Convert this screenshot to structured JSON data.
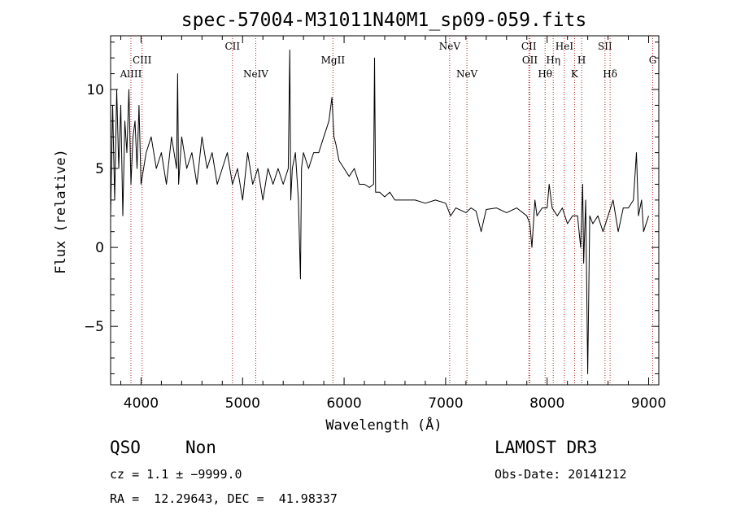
{
  "chart_data": {
    "type": "line",
    "title": "spec-57004-M31011N40M1_sp09-059.fits",
    "xlabel": "Wavelength (Å)",
    "ylabel": "Flux (relative)",
    "xlim": [
      3700,
      9100
    ],
    "ylim": [
      -8.7,
      13.4
    ],
    "x_ticks": [
      4000,
      5000,
      6000,
      7000,
      8000,
      9000
    ],
    "y_ticks": [
      -5,
      0,
      5,
      10
    ],
    "x_tick_labels": [
      "4000",
      "5000",
      "6000",
      "7000",
      "8000",
      "9000"
    ],
    "y_tick_labels": [
      "−5",
      "0",
      "5",
      "10"
    ],
    "series": [
      {
        "name": "spectrum",
        "x": [
          3700,
          3720,
          3740,
          3760,
          3780,
          3800,
          3820,
          3840,
          3860,
          3880,
          3900,
          3920,
          3940,
          3960,
          3980,
          4000,
          4050,
          4100,
          4150,
          4200,
          4250,
          4300,
          4350,
          4360,
          4370,
          4400,
          4450,
          4500,
          4550,
          4600,
          4650,
          4700,
          4750,
          4800,
          4850,
          4900,
          4950,
          5000,
          5050,
          5100,
          5150,
          5200,
          5250,
          5300,
          5350,
          5400,
          5450,
          5465,
          5475,
          5490,
          5520,
          5550,
          5570,
          5580,
          5600,
          5650,
          5700,
          5750,
          5800,
          5850,
          5880,
          5900,
          5920,
          5950,
          6000,
          6050,
          6100,
          6150,
          6200,
          6250,
          6290,
          6300,
          6310,
          6350,
          6400,
          6450,
          6500,
          6600,
          6700,
          6800,
          6900,
          7000,
          7050,
          7100,
          7200,
          7250,
          7300,
          7350,
          7400,
          7500,
          7600,
          7700,
          7800,
          7830,
          7850,
          7880,
          7900,
          7950,
          8000,
          8020,
          8050,
          8100,
          8150,
          8200,
          8250,
          8300,
          8330,
          8350,
          8360,
          8380,
          8400,
          8420,
          8450,
          8500,
          8550,
          8600,
          8650,
          8700,
          8750,
          8800,
          8850,
          8880,
          8900,
          8930,
          8950,
          9000
        ],
        "y": [
          2,
          9,
          3,
          10,
          5,
          9,
          2,
          8,
          6,
          10,
          4,
          7,
          8,
          5,
          9,
          4,
          6,
          7,
          5,
          6,
          4,
          7,
          5,
          11,
          4,
          7,
          5,
          6,
          4,
          7,
          5,
          6,
          4,
          5,
          6,
          4,
          5,
          3,
          6,
          4,
          5,
          3,
          5,
          4,
          5,
          4,
          5,
          12.5,
          3,
          5,
          6,
          3,
          -2,
          5,
          6,
          5,
          6,
          6,
          7,
          8,
          9.5,
          7,
          6.5,
          5.5,
          5,
          4.5,
          5,
          4,
          4,
          3.8,
          4,
          12,
          3.5,
          3.5,
          3.2,
          3.5,
          3,
          3,
          3,
          2.8,
          3,
          2.8,
          2,
          2.5,
          2.2,
          2.5,
          2.3,
          1,
          2.4,
          2.5,
          2.2,
          2.5,
          2,
          1.5,
          0,
          3,
          2,
          2.5,
          2.5,
          4,
          2.5,
          2,
          2.5,
          1.5,
          2,
          2,
          0,
          4,
          -1,
          3,
          -8,
          2,
          1.5,
          2,
          1,
          2,
          3,
          1,
          2.5,
          2.5,
          3,
          6,
          2,
          3,
          1,
          2
        ]
      }
    ],
    "line_markers": [
      {
        "label": "AlIII",
        "x": 3900,
        "row": 3
      },
      {
        "label": "CIII",
        "x": 4010,
        "row": 2
      },
      {
        "label": "CII",
        "x": 4900,
        "row": 1
      },
      {
        "label": "NeIV",
        "x": 5130,
        "row": 3
      },
      {
        "label": "MgII",
        "x": 5890,
        "row": 2
      },
      {
        "label": "NeV",
        "x": 7040,
        "row": 1
      },
      {
        "label": "NeV",
        "x": 7210,
        "row": 3
      },
      {
        "label": "CII",
        "x": 7820,
        "row": 1
      },
      {
        "label": "OII",
        "x": 7830,
        "row": 2
      },
      {
        "label": "Hθ",
        "x": 7980,
        "row": 3
      },
      {
        "label": "Hη",
        "x": 8060,
        "row": 2
      },
      {
        "label": "HeI",
        "x": 8170,
        "row": 1
      },
      {
        "label": "K",
        "x": 8270,
        "row": 3
      },
      {
        "label": "H",
        "x": 8340,
        "row": 2
      },
      {
        "label": "SII",
        "x": 8570,
        "row": 1
      },
      {
        "label": "Hδ",
        "x": 8620,
        "row": 3
      },
      {
        "label": "G",
        "x": 9040,
        "row": 2
      }
    ]
  },
  "info": {
    "class": "QSO",
    "subclass": "Non",
    "cz": "cz = 1.1 ± −9999.0",
    "coords": "RA =  12.29643, DEC =  41.98337",
    "survey": "LAMOST DR3",
    "obs_date": "Obs-Date: 20141212"
  }
}
